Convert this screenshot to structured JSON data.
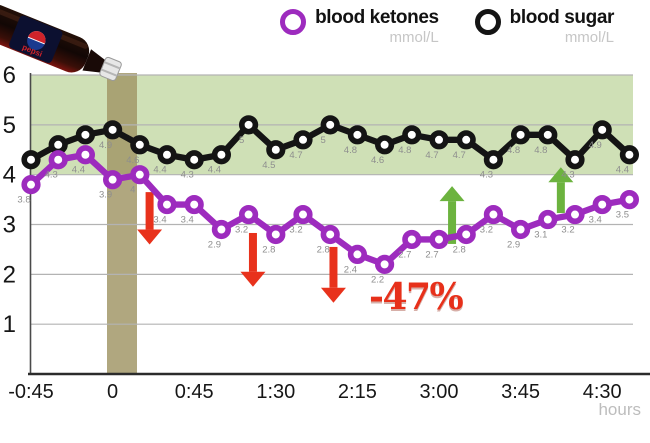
{
  "legend": [
    {
      "label": "blood ketones",
      "unit": "mmol/L",
      "color": "#9d2bbe"
    },
    {
      "label": "blood sugar",
      "unit": "mmol/L",
      "color": "#141414"
    }
  ],
  "annotation": {
    "percent_change": "-47%"
  },
  "chart_data": {
    "type": "line",
    "title": "",
    "xlabel": "hours",
    "ylabel": "mmol/L",
    "ylim": [
      0,
      6
    ],
    "yticks": [
      6,
      5,
      4,
      3,
      2,
      1
    ],
    "xticks": [
      "-0:45",
      "0",
      "0:45",
      "1:30",
      "2:15",
      "3:00",
      "3:45",
      "4:30"
    ],
    "x_times": [
      "-0:45",
      "-0:30",
      "-0:15",
      "0:00",
      "0:15",
      "0:30",
      "0:45",
      "1:00",
      "1:15",
      "1:30",
      "1:45",
      "2:00",
      "2:15",
      "2:30",
      "2:45",
      "3:00",
      "3:15",
      "3:30",
      "3:45",
      "4:00",
      "4:15",
      "4:30",
      "4:45"
    ],
    "series": [
      {
        "name": "blood sugar",
        "color": "#141414",
        "values": [
          4.3,
          4.6,
          4.8,
          4.9,
          4.6,
          4.4,
          4.3,
          4.4,
          5,
          4.5,
          4.7,
          5,
          4.8,
          4.6,
          4.8,
          4.7,
          4.7,
          4.3,
          4.8,
          4.8,
          4.3,
          4.9,
          4.4
        ],
        "label_hidden": [
          0,
          1,
          2
        ]
      },
      {
        "name": "blood ketones",
        "color": "#9d2bbe",
        "values": [
          3.8,
          4.3,
          4.4,
          3.9,
          4,
          3.4,
          3.4,
          2.9,
          3.2,
          2.8,
          3.2,
          2.8,
          2.4,
          2.2,
          2.7,
          2.7,
          2.8,
          3.2,
          2.9,
          3.1,
          3.2,
          3.4,
          3.5
        ],
        "label_hidden": []
      }
    ],
    "normal_band": {
      "from": 4,
      "to": 6,
      "color": "#cfe0b6"
    },
    "intervention_bar": {
      "time": "0",
      "color": "#a29868"
    },
    "arrows": [
      {
        "dir": "down",
        "t_hours": 0.34,
        "from_val": 3.65,
        "to_val": 2.6,
        "color": "#e8321c"
      },
      {
        "dir": "down",
        "t_hours": 1.29,
        "from_val": 2.83,
        "to_val": 1.75,
        "color": "#e8321c"
      },
      {
        "dir": "down",
        "t_hours": 2.03,
        "from_val": 2.55,
        "to_val": 1.43,
        "color": "#e8321c"
      },
      {
        "dir": "up",
        "t_hours": 3.12,
        "from_val": 2.61,
        "to_val": 3.77,
        "color": "#6cb33f"
      },
      {
        "dir": "up",
        "t_hours": 4.12,
        "from_val": 3.23,
        "to_val": 4.15,
        "color": "#6cb33f"
      }
    ],
    "theme": {
      "grid_color": "#b3b3b3",
      "axis_color": "#2b2b2b",
      "tick_color": "#161616",
      "point_label_color": "#8e8e8e",
      "unit_label_color": "#bdbdbd",
      "red": "#e7301a",
      "green": "#6cb33f"
    }
  }
}
